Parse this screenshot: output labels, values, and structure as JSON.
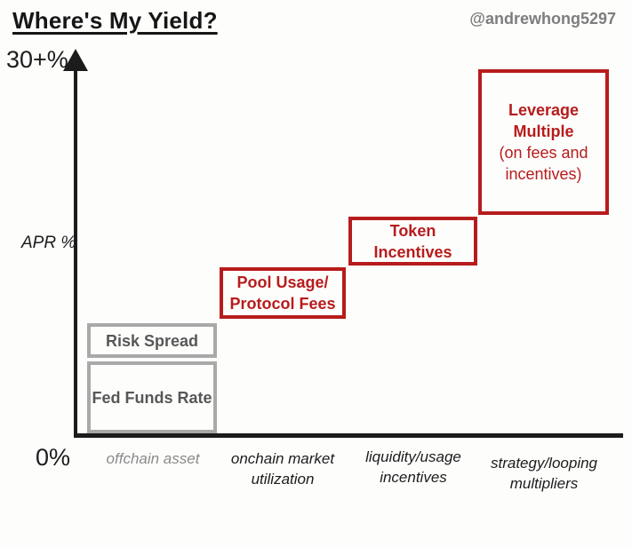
{
  "header": {
    "title": "Where's My Yield?",
    "handle": "@andrewhong5297"
  },
  "axes": {
    "y_max_label": "30+%",
    "y_axis_title": "APR %",
    "y_origin_label": "0%"
  },
  "boxes": {
    "risk_spread": {
      "label": "Risk Spread"
    },
    "fed_funds_rate": {
      "label": "Fed Funds Rate"
    },
    "pool_usage": {
      "line1": "Pool Usage/",
      "line2": "Protocol Fees"
    },
    "token_incentives": {
      "line1": "Token",
      "line2": "Incentives"
    },
    "leverage_multiple": {
      "line1": "Leverage",
      "line2": "Multiple",
      "line3": "(on fees and",
      "line4": "incentives)"
    }
  },
  "x_labels": [
    {
      "line1": "offchain asset",
      "line2": ""
    },
    {
      "line1": "onchain market",
      "line2": "utilization"
    },
    {
      "line1": "liquidity/usage",
      "line2": "incentives"
    },
    {
      "line1": "strategy/looping",
      "line2": "multipliers"
    }
  ],
  "colors": {
    "red": "#b71c1c",
    "gray_border": "#a9a9a9",
    "gray_box_text": "#575757",
    "muted_label_gray": "#8a8a8a",
    "handle_gray": "#7d7d7d",
    "axis_black": "#1c1c1c"
  },
  "chart_data": {
    "type": "bar",
    "title": "Where's My Yield?",
    "ylabel": "APR %",
    "y_axis_tick_labels": [
      "0%",
      "30+%"
    ],
    "ylim": [
      0,
      30
    ],
    "grid": false,
    "legend": false,
    "annotation": "@andrewhong5297",
    "categories": [
      "offchain asset",
      "onchain market utilization",
      "liquidity/usage incentives",
      "strategy/looping multipliers"
    ],
    "series": [
      {
        "name": "Fed Funds Rate",
        "category": "offchain asset",
        "apr_range_pct_est": [
          0,
          5.5
        ],
        "color_group": "gray"
      },
      {
        "name": "Risk Spread",
        "category": "offchain asset",
        "apr_range_pct_est": [
          6,
          8.5
        ],
        "color_group": "gray"
      },
      {
        "name": "Pool Usage/Protocol Fees",
        "category": "onchain market utilization",
        "apr_range_pct_est": [
          9,
          13
        ],
        "color_group": "red"
      },
      {
        "name": "Token Incentives",
        "category": "liquidity/usage incentives",
        "apr_range_pct_est": [
          13,
          17
        ],
        "color_group": "red"
      },
      {
        "name": "Leverage Multiple (on fees and incentives)",
        "category": "strategy/looping multipliers",
        "apr_range_pct_est": [
          17,
          28.5
        ],
        "color_group": "red"
      }
    ]
  }
}
